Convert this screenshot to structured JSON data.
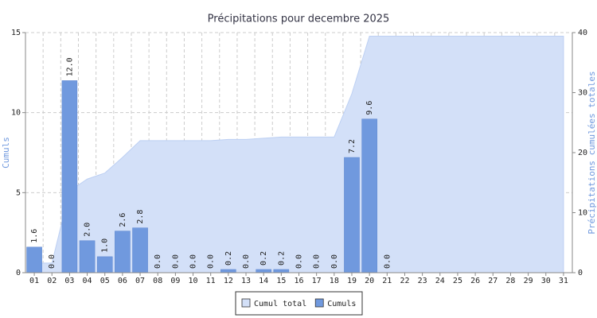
{
  "chart_data": {
    "type": "bar",
    "title": "Précipitations pour decembre 2025",
    "y_label": "Cumuls",
    "y2_label": "Précipitations cumulées totales",
    "categories": [
      "01",
      "02",
      "03",
      "04",
      "05",
      "06",
      "07",
      "08",
      "09",
      "10",
      "11",
      "12",
      "13",
      "14",
      "15",
      "16",
      "17",
      "18",
      "19",
      "20",
      "21",
      "22",
      "23",
      "24",
      "25",
      "26",
      "27",
      "28",
      "29",
      "30",
      "31"
    ],
    "series": [
      {
        "name": "Cumul total",
        "color": "#d3e0f8",
        "type": "area",
        "axis": "y2",
        "values": [
          1.6,
          1.6,
          13.6,
          15.6,
          16.6,
          19.2,
          22.0,
          22.0,
          22.0,
          22.0,
          22.0,
          22.2,
          22.2,
          22.4,
          22.6,
          22.6,
          22.6,
          22.6,
          29.8,
          39.4,
          39.4,
          39.4,
          39.4,
          39.4,
          39.4,
          39.4,
          39.4,
          39.4,
          39.4,
          39.4,
          39.4
        ]
      },
      {
        "name": "Cumuls",
        "color": "#7099de",
        "type": "bar",
        "values": [
          1.6,
          0,
          12,
          2,
          1,
          2.6,
          2.8,
          0,
          0,
          0,
          0,
          0.2,
          0,
          0.2,
          0.2,
          0,
          0,
          0,
          7.2,
          9.6,
          0,
          null,
          null,
          null,
          null,
          null,
          null,
          null,
          null,
          null,
          null
        ],
        "value_labels": [
          "1.6",
          "0.0",
          "12.0",
          "2.0",
          "1.0",
          "2.6",
          "2.8",
          "0.0",
          "0.0",
          "0.0",
          "0.0",
          "0.2",
          "0.0",
          "0.2",
          "0.2",
          "0.0",
          "0.0",
          "0.0",
          "7.2",
          "9.6",
          "0.0",
          null,
          null,
          null,
          null,
          null,
          null,
          null,
          null,
          null,
          null
        ]
      }
    ],
    "ylim": [
      0,
      15
    ],
    "yticks": [
      0,
      5,
      10,
      15
    ],
    "y2lim": [
      0,
      40
    ],
    "y2ticks": [
      0,
      10,
      20,
      30,
      40
    ],
    "grid": true,
    "legend": "bottom"
  }
}
